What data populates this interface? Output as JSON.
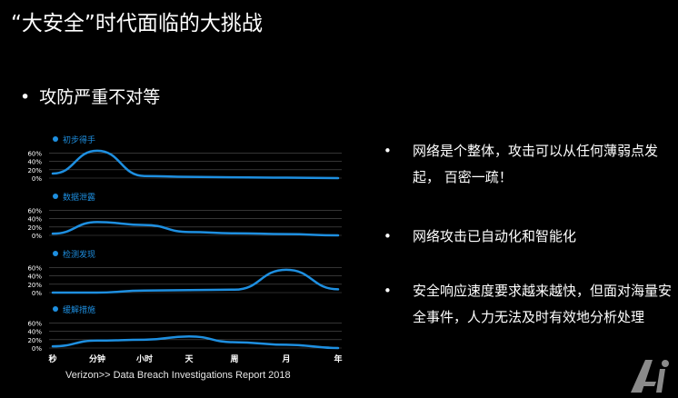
{
  "header": {
    "title": "“大安全”时代面临的大挑战",
    "subtitle": "攻防严重不对等"
  },
  "source": "Verizon>> Data Breach Investigations Report 2018",
  "bullets": [
    "网络是个整体，攻击可以从任何薄弱点发起， 百密一疏！",
    "网络攻击已自动化和智能化",
    "安全响应速度要求越来越快，但面对海量安全事件，人力无法及时有效地分析处理"
  ],
  "colors": {
    "line": "#1e8fe0",
    "dot": "#1e8fe0",
    "grid": "#555555",
    "background": "#000000"
  },
  "chart_data": [
    {
      "type": "line",
      "title": "初步得手",
      "y_ticks": [
        "60%",
        "40%",
        "20%",
        "0%"
      ],
      "ylim": [
        0,
        70
      ],
      "x": [
        "秒",
        "分钟",
        "小时",
        "天",
        "周",
        "月",
        "年"
      ],
      "values": [
        11,
        66,
        5,
        3,
        2,
        1,
        0
      ]
    },
    {
      "type": "line",
      "title": "数据泄露",
      "y_ticks": [
        "60%",
        "40%",
        "20%",
        "0%"
      ],
      "ylim": [
        0,
        70
      ],
      "x": [
        "秒",
        "分钟",
        "小时",
        "天",
        "周",
        "月",
        "年"
      ],
      "values": [
        4,
        32,
        25,
        8,
        5,
        3,
        0
      ]
    },
    {
      "type": "line",
      "title": "检测发现",
      "y_ticks": [
        "60%",
        "40%",
        "20%",
        "0%"
      ],
      "ylim": [
        0,
        70
      ],
      "x": [
        "秒",
        "分钟",
        "小时",
        "天",
        "周",
        "月",
        "年"
      ],
      "values": [
        0,
        0,
        5,
        6,
        7,
        55,
        8
      ]
    },
    {
      "type": "line",
      "title": "缓解措施",
      "y_ticks": [
        "60%",
        "40%",
        "20%",
        "0%"
      ],
      "ylim": [
        0,
        70
      ],
      "x": [
        "秒",
        "分钟",
        "小时",
        "天",
        "周",
        "月",
        "年"
      ],
      "values": [
        4,
        18,
        20,
        28,
        14,
        8,
        0
      ]
    }
  ]
}
